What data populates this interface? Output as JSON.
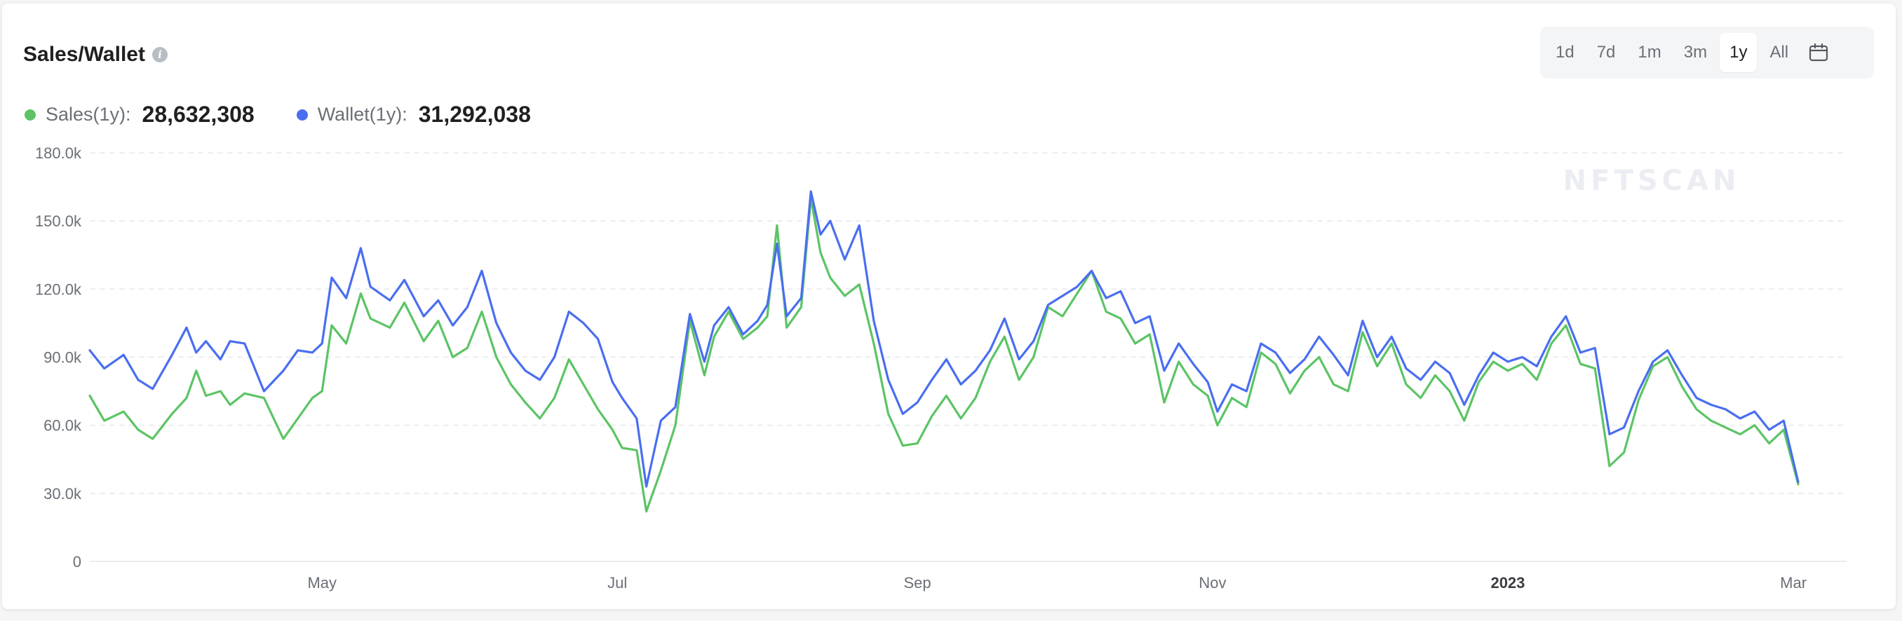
{
  "header": {
    "title": "Sales/Wallet"
  },
  "range_tabs": [
    {
      "label": "1d",
      "active": false
    },
    {
      "label": "7d",
      "active": false
    },
    {
      "label": "1m",
      "active": false
    },
    {
      "label": "3m",
      "active": false
    },
    {
      "label": "1y",
      "active": true
    },
    {
      "label": "All",
      "active": false
    }
  ],
  "legend": {
    "sales": {
      "label": "Sales(1y):",
      "value": "28,632,308",
      "color": "#5cc465"
    },
    "wallet": {
      "label": "Wallet(1y):",
      "value": "31,292,038",
      "color": "#4a6ef0"
    }
  },
  "watermark": "NFTSCAN",
  "chart_data": {
    "type": "line",
    "title": "Sales/Wallet",
    "xlabel": "",
    "ylabel": "",
    "ylim": [
      0,
      180000
    ],
    "y_ticks": [
      "0",
      "30.0k",
      "60.0k",
      "90.0k",
      "120.0k",
      "150.0k",
      "180.0k"
    ],
    "x_range": [
      "2022-03-14",
      "2023-03-12"
    ],
    "x_ticks": [
      {
        "label": "May",
        "date": "2022-05-01"
      },
      {
        "label": "Jul",
        "date": "2022-07-01"
      },
      {
        "label": "Sep",
        "date": "2022-09-01"
      },
      {
        "label": "Nov",
        "date": "2022-11-01"
      },
      {
        "label": "2023",
        "date": "2023-01-01",
        "bold": true
      },
      {
        "label": "Mar",
        "date": "2023-03-01"
      }
    ],
    "grid": true,
    "series": [
      {
        "name": "Sales",
        "color": "#5cc465",
        "points": [
          [
            "2022-03-14",
            73000
          ],
          [
            "2022-03-17",
            62000
          ],
          [
            "2022-03-21",
            66000
          ],
          [
            "2022-03-24",
            58000
          ],
          [
            "2022-03-27",
            54000
          ],
          [
            "2022-03-31",
            65000
          ],
          [
            "2022-04-03",
            72000
          ],
          [
            "2022-04-05",
            84000
          ],
          [
            "2022-04-07",
            73000
          ],
          [
            "2022-04-10",
            75000
          ],
          [
            "2022-04-12",
            69000
          ],
          [
            "2022-04-15",
            74000
          ],
          [
            "2022-04-19",
            72000
          ],
          [
            "2022-04-23",
            54000
          ],
          [
            "2022-04-26",
            63000
          ],
          [
            "2022-04-29",
            72000
          ],
          [
            "2022-05-01",
            75000
          ],
          [
            "2022-05-03",
            104000
          ],
          [
            "2022-05-06",
            96000
          ],
          [
            "2022-05-09",
            118000
          ],
          [
            "2022-05-11",
            107000
          ],
          [
            "2022-05-15",
            103000
          ],
          [
            "2022-05-18",
            114000
          ],
          [
            "2022-05-22",
            97000
          ],
          [
            "2022-05-25",
            106000
          ],
          [
            "2022-05-28",
            90000
          ],
          [
            "2022-05-31",
            94000
          ],
          [
            "2022-06-03",
            110000
          ],
          [
            "2022-06-06",
            90000
          ],
          [
            "2022-06-09",
            78000
          ],
          [
            "2022-06-12",
            70000
          ],
          [
            "2022-06-15",
            63000
          ],
          [
            "2022-06-18",
            72000
          ],
          [
            "2022-06-21",
            89000
          ],
          [
            "2022-06-24",
            78000
          ],
          [
            "2022-06-27",
            67000
          ],
          [
            "2022-06-30",
            58000
          ],
          [
            "2022-07-02",
            50000
          ],
          [
            "2022-07-05",
            49000
          ],
          [
            "2022-07-07",
            22000
          ],
          [
            "2022-07-10",
            40000
          ],
          [
            "2022-07-13",
            60000
          ],
          [
            "2022-07-16",
            106000
          ],
          [
            "2022-07-19",
            82000
          ],
          [
            "2022-07-21",
            99000
          ],
          [
            "2022-07-24",
            110000
          ],
          [
            "2022-07-27",
            98000
          ],
          [
            "2022-07-30",
            103000
          ],
          [
            "2022-08-01",
            108000
          ],
          [
            "2022-08-03",
            148000
          ],
          [
            "2022-08-05",
            103000
          ],
          [
            "2022-08-08",
            112000
          ],
          [
            "2022-08-10",
            160000
          ],
          [
            "2022-08-12",
            136000
          ],
          [
            "2022-08-14",
            125000
          ],
          [
            "2022-08-17",
            117000
          ],
          [
            "2022-08-20",
            122000
          ],
          [
            "2022-08-23",
            96000
          ],
          [
            "2022-08-26",
            65000
          ],
          [
            "2022-08-29",
            51000
          ],
          [
            "2022-09-01",
            52000
          ],
          [
            "2022-09-04",
            64000
          ],
          [
            "2022-09-07",
            73000
          ],
          [
            "2022-09-10",
            63000
          ],
          [
            "2022-09-13",
            72000
          ],
          [
            "2022-09-16",
            88000
          ],
          [
            "2022-09-19",
            99000
          ],
          [
            "2022-09-22",
            80000
          ],
          [
            "2022-09-25",
            90000
          ],
          [
            "2022-09-28",
            112000
          ],
          [
            "2022-10-01",
            108000
          ],
          [
            "2022-10-04",
            118000
          ],
          [
            "2022-10-07",
            128000
          ],
          [
            "2022-10-10",
            110000
          ],
          [
            "2022-10-13",
            107000
          ],
          [
            "2022-10-16",
            96000
          ],
          [
            "2022-10-19",
            100000
          ],
          [
            "2022-10-22",
            70000
          ],
          [
            "2022-10-25",
            88000
          ],
          [
            "2022-10-28",
            78000
          ],
          [
            "2022-10-31",
            73000
          ],
          [
            "2022-11-02",
            60000
          ],
          [
            "2022-11-05",
            72000
          ],
          [
            "2022-11-08",
            68000
          ],
          [
            "2022-11-11",
            92000
          ],
          [
            "2022-11-14",
            87000
          ],
          [
            "2022-11-17",
            74000
          ],
          [
            "2022-11-20",
            84000
          ],
          [
            "2022-11-23",
            90000
          ],
          [
            "2022-11-26",
            78000
          ],
          [
            "2022-11-29",
            75000
          ],
          [
            "2022-12-02",
            101000
          ],
          [
            "2022-12-05",
            86000
          ],
          [
            "2022-12-08",
            96000
          ],
          [
            "2022-12-11",
            78000
          ],
          [
            "2022-12-14",
            72000
          ],
          [
            "2022-12-17",
            82000
          ],
          [
            "2022-12-20",
            75000
          ],
          [
            "2022-12-23",
            62000
          ],
          [
            "2022-12-26",
            79000
          ],
          [
            "2022-12-29",
            88000
          ],
          [
            "2023-01-01",
            84000
          ],
          [
            "2023-01-04",
            87000
          ],
          [
            "2023-01-07",
            80000
          ],
          [
            "2023-01-10",
            96000
          ],
          [
            "2023-01-13",
            104000
          ],
          [
            "2023-01-16",
            87000
          ],
          [
            "2023-01-19",
            85000
          ],
          [
            "2023-01-22",
            42000
          ],
          [
            "2023-01-25",
            48000
          ],
          [
            "2023-01-28",
            71000
          ],
          [
            "2023-01-31",
            86000
          ],
          [
            "2023-02-03",
            90000
          ],
          [
            "2023-02-06",
            77000
          ],
          [
            "2023-02-09",
            67000
          ],
          [
            "2023-02-12",
            62000
          ],
          [
            "2023-02-15",
            59000
          ],
          [
            "2023-02-18",
            56000
          ],
          [
            "2023-02-21",
            60000
          ],
          [
            "2023-02-24",
            52000
          ],
          [
            "2023-02-27",
            58000
          ],
          [
            "2023-03-02",
            34000
          ]
        ]
      },
      {
        "name": "Wallet",
        "color": "#4a6ef0",
        "points": [
          [
            "2022-03-14",
            93000
          ],
          [
            "2022-03-17",
            85000
          ],
          [
            "2022-03-21",
            91000
          ],
          [
            "2022-03-24",
            80000
          ],
          [
            "2022-03-27",
            76000
          ],
          [
            "2022-03-31",
            91000
          ],
          [
            "2022-04-03",
            103000
          ],
          [
            "2022-04-05",
            92000
          ],
          [
            "2022-04-07",
            97000
          ],
          [
            "2022-04-10",
            89000
          ],
          [
            "2022-04-12",
            97000
          ],
          [
            "2022-04-15",
            96000
          ],
          [
            "2022-04-19",
            75000
          ],
          [
            "2022-04-23",
            84000
          ],
          [
            "2022-04-26",
            93000
          ],
          [
            "2022-04-29",
            92000
          ],
          [
            "2022-05-01",
            96000
          ],
          [
            "2022-05-03",
            125000
          ],
          [
            "2022-05-06",
            116000
          ],
          [
            "2022-05-09",
            138000
          ],
          [
            "2022-05-11",
            121000
          ],
          [
            "2022-05-15",
            115000
          ],
          [
            "2022-05-18",
            124000
          ],
          [
            "2022-05-22",
            108000
          ],
          [
            "2022-05-25",
            115000
          ],
          [
            "2022-05-28",
            104000
          ],
          [
            "2022-05-31",
            112000
          ],
          [
            "2022-06-03",
            128000
          ],
          [
            "2022-06-06",
            105000
          ],
          [
            "2022-06-09",
            92000
          ],
          [
            "2022-06-12",
            84000
          ],
          [
            "2022-06-15",
            80000
          ],
          [
            "2022-06-18",
            90000
          ],
          [
            "2022-06-21",
            110000
          ],
          [
            "2022-06-24",
            105000
          ],
          [
            "2022-06-27",
            98000
          ],
          [
            "2022-06-30",
            79000
          ],
          [
            "2022-07-02",
            72000
          ],
          [
            "2022-07-05",
            63000
          ],
          [
            "2022-07-07",
            33000
          ],
          [
            "2022-07-10",
            62000
          ],
          [
            "2022-07-13",
            68000
          ],
          [
            "2022-07-16",
            109000
          ],
          [
            "2022-07-19",
            88000
          ],
          [
            "2022-07-21",
            104000
          ],
          [
            "2022-07-24",
            112000
          ],
          [
            "2022-07-27",
            100000
          ],
          [
            "2022-07-30",
            106000
          ],
          [
            "2022-08-01",
            113000
          ],
          [
            "2022-08-03",
            140000
          ],
          [
            "2022-08-05",
            108000
          ],
          [
            "2022-08-08",
            116000
          ],
          [
            "2022-08-10",
            163000
          ],
          [
            "2022-08-12",
            144000
          ],
          [
            "2022-08-14",
            150000
          ],
          [
            "2022-08-17",
            133000
          ],
          [
            "2022-08-20",
            148000
          ],
          [
            "2022-08-23",
            106000
          ],
          [
            "2022-08-26",
            80000
          ],
          [
            "2022-08-29",
            65000
          ],
          [
            "2022-09-01",
            70000
          ],
          [
            "2022-09-04",
            80000
          ],
          [
            "2022-09-07",
            89000
          ],
          [
            "2022-09-10",
            78000
          ],
          [
            "2022-09-13",
            84000
          ],
          [
            "2022-09-16",
            93000
          ],
          [
            "2022-09-19",
            107000
          ],
          [
            "2022-09-22",
            89000
          ],
          [
            "2022-09-25",
            97000
          ],
          [
            "2022-09-28",
            113000
          ],
          [
            "2022-10-01",
            117000
          ],
          [
            "2022-10-04",
            121000
          ],
          [
            "2022-10-07",
            128000
          ],
          [
            "2022-10-10",
            116000
          ],
          [
            "2022-10-13",
            119000
          ],
          [
            "2022-10-16",
            105000
          ],
          [
            "2022-10-19",
            108000
          ],
          [
            "2022-10-22",
            84000
          ],
          [
            "2022-10-25",
            96000
          ],
          [
            "2022-10-28",
            87000
          ],
          [
            "2022-10-31",
            79000
          ],
          [
            "2022-11-02",
            66000
          ],
          [
            "2022-11-05",
            78000
          ],
          [
            "2022-11-08",
            75000
          ],
          [
            "2022-11-11",
            96000
          ],
          [
            "2022-11-14",
            92000
          ],
          [
            "2022-11-17",
            83000
          ],
          [
            "2022-11-20",
            89000
          ],
          [
            "2022-11-23",
            99000
          ],
          [
            "2022-11-26",
            91000
          ],
          [
            "2022-11-29",
            82000
          ],
          [
            "2022-12-02",
            106000
          ],
          [
            "2022-12-05",
            90000
          ],
          [
            "2022-12-08",
            99000
          ],
          [
            "2022-12-11",
            85000
          ],
          [
            "2022-12-14",
            80000
          ],
          [
            "2022-12-17",
            88000
          ],
          [
            "2022-12-20",
            83000
          ],
          [
            "2022-12-23",
            69000
          ],
          [
            "2022-12-26",
            82000
          ],
          [
            "2022-12-29",
            92000
          ],
          [
            "2023-01-01",
            88000
          ],
          [
            "2023-01-04",
            90000
          ],
          [
            "2023-01-07",
            86000
          ],
          [
            "2023-01-10",
            99000
          ],
          [
            "2023-01-13",
            108000
          ],
          [
            "2023-01-16",
            92000
          ],
          [
            "2023-01-19",
            94000
          ],
          [
            "2023-01-22",
            56000
          ],
          [
            "2023-01-25",
            59000
          ],
          [
            "2023-01-28",
            75000
          ],
          [
            "2023-01-31",
            88000
          ],
          [
            "2023-02-03",
            93000
          ],
          [
            "2023-02-06",
            82000
          ],
          [
            "2023-02-09",
            72000
          ],
          [
            "2023-02-12",
            69000
          ],
          [
            "2023-02-15",
            67000
          ],
          [
            "2023-02-18",
            63000
          ],
          [
            "2023-02-21",
            66000
          ],
          [
            "2023-02-24",
            58000
          ],
          [
            "2023-02-27",
            62000
          ],
          [
            "2023-03-02",
            35000
          ]
        ]
      }
    ]
  }
}
